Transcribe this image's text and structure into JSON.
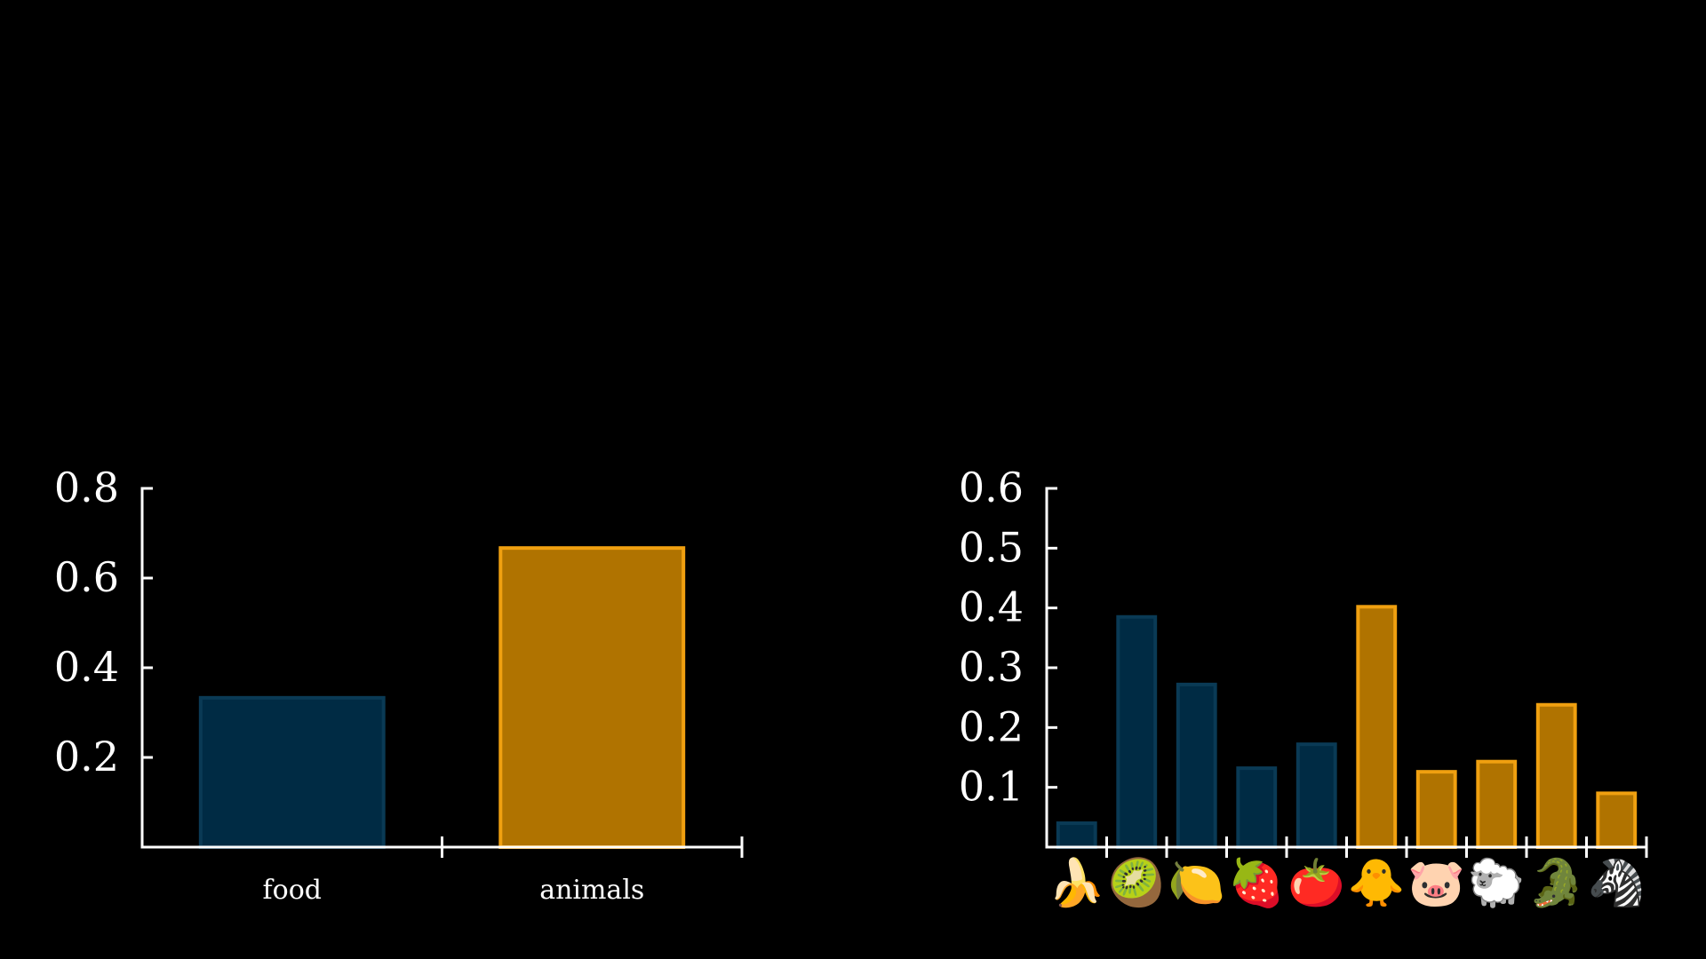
{
  "colors": {
    "background": "#000000",
    "axis": "#ffffff",
    "food_fill": "#002b44",
    "food_stroke": "#0a3a55",
    "animals_fill": "#b07300",
    "animals_stroke": "#f0a010"
  },
  "chart_data": [
    {
      "type": "bar",
      "categories": [
        "food",
        "animals"
      ],
      "values": [
        0.333,
        0.667
      ],
      "groups": [
        "food",
        "animals"
      ],
      "yticks": [
        "0.2",
        "0.4",
        "0.6",
        "0.8"
      ],
      "ytick_values": [
        0.2,
        0.4,
        0.6,
        0.8
      ],
      "ylim": [
        0,
        0.8
      ],
      "grid": false
    },
    {
      "type": "bar",
      "categories": [
        "🍌",
        "🥝",
        "🍋",
        "🍓",
        "🍅",
        "🐥",
        "🐷",
        "🐑",
        "🐊",
        "🦓"
      ],
      "category_icons": [
        "banana-icon",
        "kiwi-icon",
        "lemon-icon",
        "strawberry-icon",
        "tomato-icon",
        "chick-icon",
        "pig-icon",
        "sheep-icon",
        "crocodile-icon",
        "zebra-icon"
      ],
      "values": [
        0.04,
        0.385,
        0.272,
        0.132,
        0.172,
        0.402,
        0.126,
        0.143,
        0.238,
        0.09
      ],
      "groups": [
        "food",
        "food",
        "food",
        "food",
        "food",
        "animals",
        "animals",
        "animals",
        "animals",
        "animals"
      ],
      "yticks": [
        "0.1",
        "0.2",
        "0.3",
        "0.4",
        "0.5",
        "0.6"
      ],
      "ytick_values": [
        0.1,
        0.2,
        0.3,
        0.4,
        0.5,
        0.6
      ],
      "ylim": [
        0,
        0.6
      ],
      "grid": false
    }
  ]
}
